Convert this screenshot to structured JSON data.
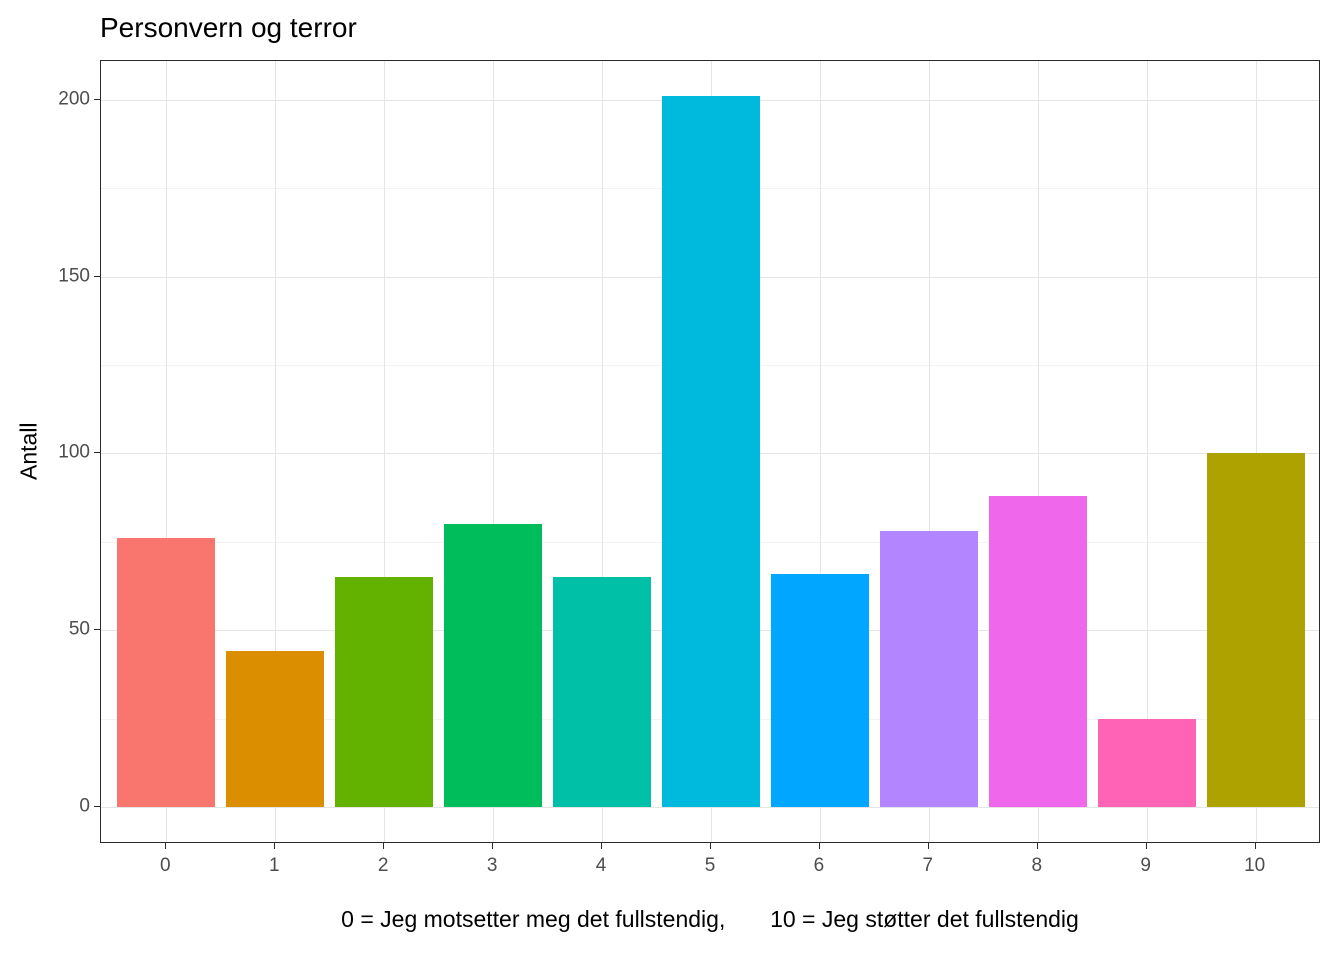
{
  "chart_data": {
    "type": "bar",
    "title": "Personvern og terror",
    "xlabel": "0 = Jeg motsetter meg det fullstendig,       10 = Jeg støtter det fullstendig",
    "ylabel": "Antall",
    "categories": [
      "0",
      "1",
      "2",
      "3",
      "4",
      "5",
      "6",
      "7",
      "8",
      "9",
      "10"
    ],
    "values": [
      76,
      44,
      65,
      80,
      65,
      201,
      66,
      78,
      88,
      25,
      100
    ],
    "colors": [
      "#F8766D",
      "#DB8E00",
      "#64B200",
      "#00BD5C",
      "#00C1A7",
      "#00BADE",
      "#00A6FF",
      "#B385FF",
      "#EF67EB",
      "#FF63B6",
      "#AEA200"
    ],
    "yticks": [
      0,
      50,
      100,
      150,
      200
    ],
    "ylim": [
      -10.5,
      211
    ],
    "grid": "on",
    "legend": "none",
    "panel_border_color": "#2b2b2b",
    "grid_major_color": "#e5e5e5",
    "grid_minor_color": "#f3f3f3",
    "axis_text_color": "#4d4d4d"
  }
}
